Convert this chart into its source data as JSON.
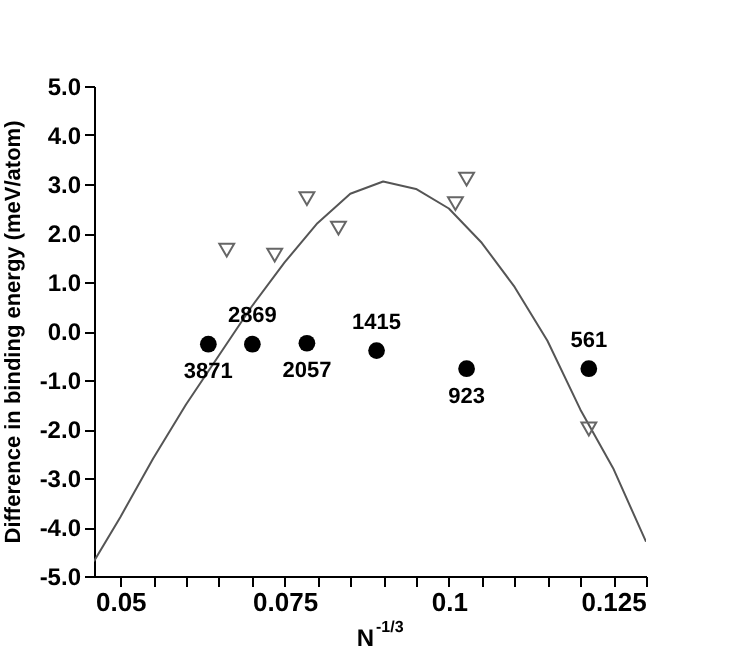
{
  "chart_data": {
    "type": "scatter",
    "xlabel": "N$^{-1/3}$",
    "ylabel": "Difference in binding energy (meV/atom)",
    "xlim": [
      0.046,
      0.13
    ],
    "ylim": [
      -5,
      5
    ],
    "xticks": [
      0.05,
      {
        "value": 0.055,
        "label": null
      },
      {
        "value": 0.06,
        "label": null
      },
      {
        "value": 0.065,
        "label": null
      },
      {
        "value": 0.07,
        "label": null
      },
      0.075,
      {
        "value": 0.08,
        "label": null
      },
      {
        "value": 0.085,
        "label": null
      },
      {
        "value": 0.09,
        "label": null
      },
      {
        "value": 0.095,
        "label": null
      },
      0.1,
      {
        "value": 0.105,
        "label": null
      },
      {
        "value": 0.11,
        "label": null
      },
      {
        "value": 0.115,
        "label": null
      },
      {
        "value": 0.12,
        "label": null
      },
      0.125,
      {
        "value": 0.13,
        "label": null
      }
    ],
    "yticks": [
      {
        "value": -5,
        "label": "-5.0"
      },
      {
        "value": -4,
        "label": "-4.0"
      },
      {
        "value": -3,
        "label": "-3.0"
      },
      {
        "value": -2,
        "label": "-2.0"
      },
      {
        "value": -1,
        "label": "-1.0"
      },
      {
        "value": 0,
        "label": "0.0"
      },
      {
        "value": 1,
        "label": "1.0"
      },
      {
        "value": 2,
        "label": "2.0"
      },
      {
        "value": 3,
        "label": "3.0"
      },
      {
        "value": 4,
        "label": "4.0"
      },
      {
        "value": 5,
        "label": "5.0"
      }
    ],
    "grid": false,
    "series": [
      {
        "type": "line",
        "color": "#555555",
        "marker": "none",
        "line_style": "solid",
        "x": [
          0.046,
          0.05,
          0.055,
          0.06,
          0.065,
          0.07,
          0.075,
          0.08,
          0.085,
          0.09,
          0.095,
          0.1,
          0.105,
          0.11,
          0.115,
          0.12,
          0.125,
          0.13
        ],
        "values": [
          -4.7,
          -3.8,
          -2.6,
          -1.5,
          -0.5,
          0.5,
          1.4,
          2.2,
          2.8,
          3.05,
          2.9,
          2.5,
          1.8,
          0.9,
          -0.2,
          -1.6,
          -2.8,
          -4.3
        ]
      },
      {
        "color": "#666666",
        "marker": "triangle",
        "x": [
          0.0662,
          0.0735,
          0.0784,
          0.0832,
          0.101,
          0.1027,
          0.1213
        ],
        "values": [
          1.65,
          1.55,
          2.7,
          2.1,
          2.6,
          3.1,
          -2.0
        ]
      },
      {
        "color": "#000000",
        "marker": "circle",
        "x": [
          0.0634,
          0.0701,
          0.0784,
          0.089,
          0.1027,
          0.1213
        ],
        "values": [
          -0.27,
          -0.27,
          -0.25,
          -0.4,
          -0.77,
          -0.77
        ]
      }
    ],
    "annotations": [
      {
        "text": "3871",
        "x": 0.0634,
        "y": -0.27
      },
      {
        "text": "2869",
        "x": 0.0701,
        "y": -0.27
      },
      {
        "text": "2057",
        "x": 0.0784,
        "y": -0.25
      },
      {
        "text": "1415",
        "x": 0.089,
        "y": -0.4
      },
      {
        "text": "923",
        "x": 0.1027,
        "y": -0.77
      },
      {
        "text": "561",
        "x": 0.1213,
        "y": -0.77
      }
    ]
  }
}
